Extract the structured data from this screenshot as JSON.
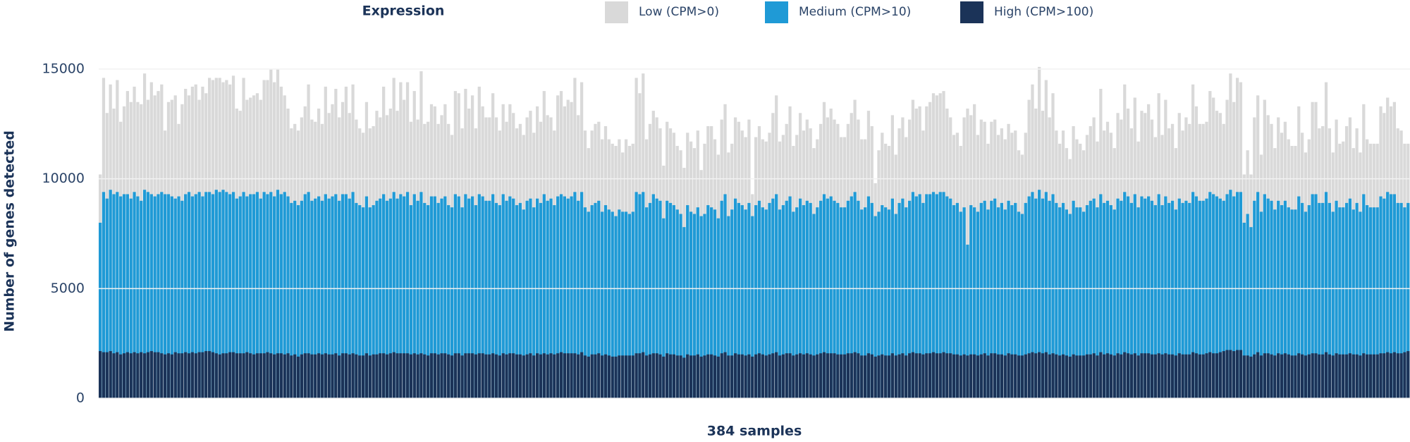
{
  "chart_data": {
    "type": "bar",
    "barmode": "overlay",
    "legend_title": "Expression",
    "legend_position": "top",
    "ylabel": "Number of genes detected",
    "xlabel": "384 samples",
    "ylim": [
      0,
      15000
    ],
    "yticks": [
      0,
      5000,
      10000,
      15000
    ],
    "grid": true,
    "series": [
      {
        "name": "Low (CPM>0)",
        "color": "#d9d9d9",
        "values": [
          10200,
          14600,
          13000,
          14300,
          13200,
          14500,
          12600,
          13300,
          14000,
          13500,
          14200,
          13500,
          13400,
          14800,
          13600,
          14400,
          13800,
          14000,
          14300,
          12200,
          13500,
          13600,
          13800,
          12500,
          13400,
          14100,
          13800,
          14200,
          14300,
          13600,
          14200,
          13900,
          14600,
          14500,
          14600,
          14600,
          14400,
          14500,
          14300,
          14700,
          13200,
          13100,
          14600,
          13600,
          13700,
          13800,
          13900,
          13600,
          14500,
          14500,
          15000,
          14400,
          15000,
          14200,
          13800,
          13200,
          12300,
          12500,
          12200,
          12800,
          13300,
          14300,
          12700,
          12600,
          13200,
          12500,
          14200,
          13000,
          13400,
          14100,
          12800,
          13500,
          14200,
          13000,
          14300,
          12700,
          12300,
          12100,
          13500,
          12300,
          12400,
          13100,
          12800,
          14200,
          12900,
          13200,
          14600,
          13100,
          14400,
          13600,
          14400,
          12600,
          14000,
          12700,
          14900,
          12500,
          12600,
          13400,
          13300,
          12500,
          12900,
          13400,
          12500,
          12000,
          14000,
          13900,
          12300,
          14100,
          13200,
          13800,
          12300,
          14200,
          13300,
          12800,
          12800,
          13900,
          12800,
          12200,
          13400,
          12600,
          13400,
          13000,
          12300,
          12500,
          12000,
          12800,
          13100,
          12100,
          13300,
          12600,
          14000,
          12900,
          12800,
          12200,
          13800,
          14000,
          13300,
          13600,
          13500,
          14600,
          12900,
          14400,
          12200,
          11400,
          12200,
          12500,
          12600,
          11800,
          12400,
          11800,
          11600,
          11500,
          11800,
          11200,
          11800,
          11500,
          11600,
          14600,
          13900,
          14800,
          11800,
          12500,
          13100,
          12800,
          12300,
          10600,
          12600,
          12300,
          12100,
          11500,
          11300,
          10500,
          12100,
          11700,
          11400,
          12200,
          10400,
          11600,
          12400,
          12400,
          11800,
          11100,
          12700,
          13400,
          11200,
          11600,
          12800,
          12600,
          12200,
          11900,
          12700,
          9300,
          11900,
          12400,
          11800,
          11700,
          12100,
          13000,
          13800,
          11700,
          12000,
          12500,
          13300,
          11500,
          12000,
          13000,
          12200,
          12700,
          12300,
          11400,
          11800,
          12500,
          13500,
          12800,
          13200,
          12700,
          12500,
          11900,
          11900,
          12500,
          13000,
          13600,
          12700,
          11800,
          11800,
          13100,
          12400,
          9800,
          11300,
          12100,
          11600,
          11500,
          12900,
          11100,
          12300,
          12800,
          11900,
          12700,
          13600,
          13200,
          13300,
          12200,
          13300,
          13500,
          13900,
          13800,
          13900,
          14000,
          13200,
          12800,
          12000,
          12100,
          11500,
          12800,
          13200,
          12900,
          13400,
          12000,
          12700,
          12600,
          11600,
          12600,
          12700,
          12000,
          12300,
          11800,
          12500,
          12100,
          12200,
          11300,
          11100,
          12100,
          13600,
          14300,
          13200,
          15100,
          13100,
          14500,
          12800,
          13900,
          12200,
          11600,
          12200,
          11400,
          10900,
          12400,
          11800,
          11600,
          11300,
          12000,
          12400,
          12800,
          11700,
          14100,
          12200,
          12600,
          12100,
          11400,
          13000,
          12700,
          14300,
          13200,
          12300,
          13700,
          11700,
          13100,
          13000,
          13400,
          12700,
          11900,
          13900,
          12000,
          13600,
          12300,
          12500,
          11400,
          13000,
          12200,
          12800,
          12500,
          14300,
          13300,
          12500,
          12500,
          12600,
          14000,
          13700,
          13100,
          13000,
          12500,
          13600,
          14800,
          13500,
          14600,
          14400,
          10200,
          11300,
          10200,
          12800,
          13800,
          11100,
          13600,
          12900,
          12500,
          11400,
          12800,
          12100,
          12600,
          11800,
          11500,
          11500,
          13300,
          12100,
          11200,
          11800,
          13500,
          13500,
          12300,
          12400,
          14400,
          12300,
          11200,
          12700,
          11600,
          11700,
          12400,
          12800,
          11400,
          12300,
          11200,
          13400,
          11800,
          11600,
          11600,
          11600,
          13300,
          13000,
          13700,
          13300,
          13500,
          12300,
          12200,
          11600,
          11600
        ]
      },
      {
        "name": "Medium (CPM>10)",
        "color": "#1f9ad6",
        "values": [
          8000,
          9400,
          9100,
          9500,
          9300,
          9400,
          9200,
          9300,
          9300,
          9100,
          9400,
          9200,
          9000,
          9500,
          9400,
          9300,
          9200,
          9300,
          9400,
          9300,
          9300,
          9200,
          9100,
          9200,
          9000,
          9300,
          9400,
          9200,
          9300,
          9400,
          9200,
          9400,
          9400,
          9300,
          9500,
          9400,
          9500,
          9400,
          9300,
          9400,
          9100,
          9200,
          9400,
          9200,
          9300,
          9300,
          9400,
          9100,
          9400,
          9300,
          9400,
          9200,
          9500,
          9300,
          9400,
          9200,
          8900,
          9000,
          8800,
          9000,
          9300,
          9400,
          9000,
          9100,
          9200,
          9000,
          9300,
          9100,
          9200,
          9300,
          9000,
          9300,
          9300,
          9100,
          9400,
          8900,
          8800,
          8700,
          9200,
          8700,
          8800,
          9000,
          9100,
          9300,
          9000,
          9100,
          9400,
          9100,
          9300,
          9200,
          9400,
          8800,
          9300,
          9000,
          9400,
          8900,
          8800,
          9200,
          9200,
          8900,
          9100,
          9200,
          8800,
          8700,
          9300,
          9200,
          8700,
          9300,
          9100,
          9200,
          8800,
          9300,
          9200,
          9000,
          9000,
          9300,
          8900,
          8800,
          9300,
          9000,
          9200,
          9100,
          8800,
          8900,
          8600,
          9000,
          9100,
          8700,
          9100,
          8900,
          9300,
          9000,
          9100,
          8800,
          9200,
          9300,
          9200,
          9100,
          9200,
          9400,
          9000,
          9400,
          8700,
          8500,
          8800,
          8900,
          9000,
          8500,
          8800,
          8600,
          8500,
          8300,
          8600,
          8500,
          8500,
          8400,
          8500,
          9400,
          9300,
          9400,
          8700,
          8900,
          9300,
          9100,
          9000,
          8200,
          9000,
          8900,
          8800,
          8600,
          8400,
          7800,
          8800,
          8500,
          8400,
          8700,
          8300,
          8400,
          8800,
          8700,
          8600,
          8200,
          9000,
          9300,
          8300,
          8600,
          9100,
          8900,
          8800,
          8600,
          8900,
          8300,
          8800,
          9000,
          8700,
          8600,
          8900,
          9100,
          9300,
          8600,
          8800,
          9000,
          9200,
          8500,
          8700,
          9100,
          8800,
          9000,
          8900,
          8400,
          8700,
          9000,
          9300,
          9100,
          9200,
          9000,
          8900,
          8700,
          8700,
          9000,
          9200,
          9400,
          9000,
          8600,
          8700,
          9200,
          8900,
          8300,
          8500,
          8800,
          8700,
          8600,
          9100,
          8400,
          8900,
          9100,
          8700,
          9000,
          9400,
          9200,
          9300,
          8900,
          9300,
          9300,
          9400,
          9300,
          9400,
          9400,
          9200,
          9100,
          8800,
          8900,
          8500,
          8700,
          7000,
          8800,
          8700,
          8500,
          8900,
          9000,
          8600,
          9000,
          9100,
          8700,
          8900,
          8600,
          9000,
          8800,
          8900,
          8500,
          8400,
          8900,
          9200,
          9400,
          9100,
          9500,
          9100,
          9400,
          9000,
          9300,
          8900,
          8700,
          8900,
          8600,
          8400,
          9000,
          8700,
          8700,
          8500,
          8800,
          9000,
          9100,
          8700,
          9300,
          8900,
          9000,
          8800,
          8600,
          9100,
          9000,
          9400,
          9200,
          8900,
          9300,
          8700,
          9200,
          9100,
          9200,
          9000,
          8800,
          9300,
          8800,
          9200,
          8900,
          9000,
          8600,
          9100,
          8900,
          9000,
          8900,
          9400,
          9200,
          9000,
          9000,
          9100,
          9400,
          9300,
          9200,
          9100,
          9000,
          9300,
          9500,
          9200,
          9400,
          9400,
          8000,
          8400,
          7800,
          9000,
          9400,
          8500,
          9300,
          9100,
          9000,
          8600,
          9000,
          8800,
          9000,
          8700,
          8600,
          8600,
          9200,
          8900,
          8500,
          8800,
          9300,
          9300,
          8900,
          8900,
          9400,
          8900,
          8500,
          9000,
          8700,
          8700,
          8900,
          9100,
          8600,
          8900,
          8500,
          9300,
          8800,
          8700,
          8700,
          8700,
          9200,
          9100,
          9400,
          9300,
          9300,
          8900,
          8900,
          8700,
          8900
        ]
      },
      {
        "name": "High (CPM>100)",
        "color": "#1b3358",
        "values": [
          2150,
          2100,
          2100,
          2150,
          2050,
          2100,
          2000,
          2050,
          2100,
          2050,
          2100,
          2050,
          2100,
          2050,
          2100,
          2150,
          2100,
          2100,
          2050,
          2000,
          2050,
          2000,
          2100,
          2050,
          2050,
          2100,
          2050,
          2100,
          2050,
          2100,
          2100,
          2150,
          2150,
          2100,
          2050,
          2000,
          2050,
          2050,
          2100,
          2100,
          2050,
          2050,
          2050,
          2100,
          2050,
          2000,
          2050,
          2050,
          2050,
          2100,
          2050,
          2000,
          2050,
          2050,
          2000,
          2050,
          1950,
          2000,
          1900,
          2000,
          2050,
          2050,
          2000,
          2000,
          2050,
          2000,
          2050,
          2000,
          2000,
          2050,
          1950,
          2050,
          2050,
          2000,
          2050,
          2000,
          1950,
          1950,
          2050,
          1950,
          2000,
          2000,
          2050,
          2050,
          2000,
          2050,
          2100,
          2050,
          2050,
          2050,
          2050,
          2000,
          2050,
          2000,
          2050,
          2000,
          1950,
          2050,
          2050,
          2000,
          2050,
          2050,
          2000,
          1950,
          2050,
          2050,
          1950,
          2050,
          2050,
          2050,
          2000,
          2050,
          2050,
          2000,
          2000,
          2050,
          2000,
          1950,
          2050,
          2000,
          2050,
          2050,
          2000,
          2000,
          1950,
          2000,
          2050,
          1950,
          2050,
          2000,
          2050,
          2000,
          2050,
          2000,
          2050,
          2100,
          2050,
          2050,
          2050,
          2050,
          2000,
          2100,
          1950,
          1900,
          2000,
          2000,
          2050,
          1950,
          2000,
          1950,
          1900,
          1900,
          1950,
          1950,
          1950,
          1950,
          1950,
          2050,
          2050,
          2100,
          1950,
          2000,
          2050,
          2050,
          2000,
          1900,
          2050,
          2000,
          2000,
          1950,
          1950,
          1850,
          2000,
          1950,
          1950,
          2000,
          1900,
          1950,
          2000,
          2000,
          1950,
          1900,
          2050,
          2100,
          1950,
          1950,
          2050,
          2000,
          2000,
          1950,
          2000,
          1900,
          2000,
          2050,
          2000,
          1950,
          2000,
          2050,
          2100,
          1950,
          2000,
          2050,
          2050,
          1950,
          2000,
          2050,
          2000,
          2050,
          2000,
          1950,
          2000,
          2050,
          2100,
          2050,
          2050,
          2050,
          2000,
          2000,
          2000,
          2050,
          2050,
          2100,
          2050,
          1950,
          1950,
          2050,
          2000,
          1900,
          1950,
          2000,
          1950,
          1950,
          2050,
          1950,
          2000,
          2050,
          1950,
          2050,
          2100,
          2050,
          2050,
          2000,
          2050,
          2050,
          2100,
          2050,
          2050,
          2100,
          2050,
          2050,
          2000,
          2000,
          1950,
          2000,
          1950,
          2000,
          2000,
          1950,
          2000,
          2050,
          1950,
          2050,
          2050,
          2000,
          2000,
          1950,
          2050,
          2000,
          2000,
          1950,
          1950,
          2000,
          2050,
          2100,
          2050,
          2100,
          2050,
          2100,
          2000,
          2050,
          2000,
          1950,
          2000,
          1950,
          1900,
          2000,
          1950,
          1950,
          1950,
          2000,
          2000,
          2050,
          1950,
          2100,
          2000,
          2050,
          2000,
          1950,
          2050,
          2000,
          2100,
          2050,
          2000,
          2050,
          1950,
          2050,
          2050,
          2050,
          2000,
          2000,
          2050,
          2000,
          2050,
          2000,
          2000,
          1950,
          2050,
          2000,
          2000,
          2000,
          2100,
          2050,
          2000,
          2000,
          2050,
          2100,
          2050,
          2050,
          2100,
          2150,
          2200,
          2200,
          2150,
          2200,
          2200,
          1950,
          1950,
          1900,
          2000,
          2100,
          1950,
          2050,
          2050,
          2000,
          1950,
          2050,
          2000,
          2050,
          2000,
          1950,
          1950,
          2050,
          2000,
          1950,
          2000,
          2050,
          2050,
          2000,
          2000,
          2100,
          2000,
          1950,
          2050,
          2000,
          2000,
          2000,
          2050,
          2000,
          2000,
          1950,
          2050,
          2000,
          2000,
          2000,
          2000,
          2050,
          2050,
          2100,
          2050,
          2100,
          2050,
          2050,
          2100,
          2150
        ]
      }
    ]
  }
}
